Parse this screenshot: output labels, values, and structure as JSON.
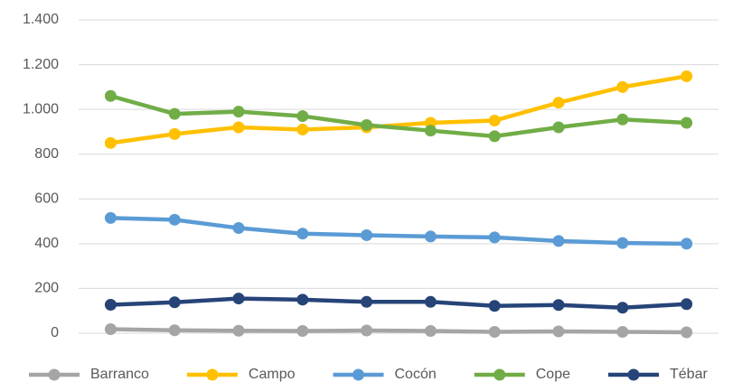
{
  "chart_data": {
    "type": "line",
    "categories": [
      null,
      null,
      null,
      null,
      null,
      null,
      null,
      null,
      null,
      null
    ],
    "series": [
      {
        "name": "Barranco",
        "color": "#a5a5a5",
        "values": [
          18,
          13,
          11,
          10,
          12,
          10,
          6,
          8,
          6,
          4
        ]
      },
      {
        "name": "Campo",
        "color": "#ffc000",
        "values": [
          850,
          890,
          920,
          910,
          920,
          940,
          950,
          1030,
          1100,
          1148
        ]
      },
      {
        "name": "Cocón",
        "color": "#5b9bd5",
        "values": [
          515,
          507,
          470,
          445,
          438,
          432,
          428,
          412,
          403,
          400
        ]
      },
      {
        "name": "Cope",
        "color": "#70ad47",
        "values": [
          1060,
          980,
          990,
          970,
          930,
          905,
          880,
          920,
          955,
          940
        ]
      },
      {
        "name": "Tébar",
        "color": "#264478",
        "values": [
          127,
          138,
          155,
          150,
          140,
          140,
          122,
          126,
          114,
          130
        ]
      }
    ],
    "ylim": [
      0,
      1400
    ],
    "yticks": [
      0,
      200,
      400,
      600,
      800,
      {
        "value": 1000,
        "label": "1.000"
      },
      {
        "value": 1200,
        "label": "1.200"
      },
      {
        "value": 1400,
        "label": "1.400"
      }
    ],
    "grid": true,
    "legend": "bottom"
  }
}
